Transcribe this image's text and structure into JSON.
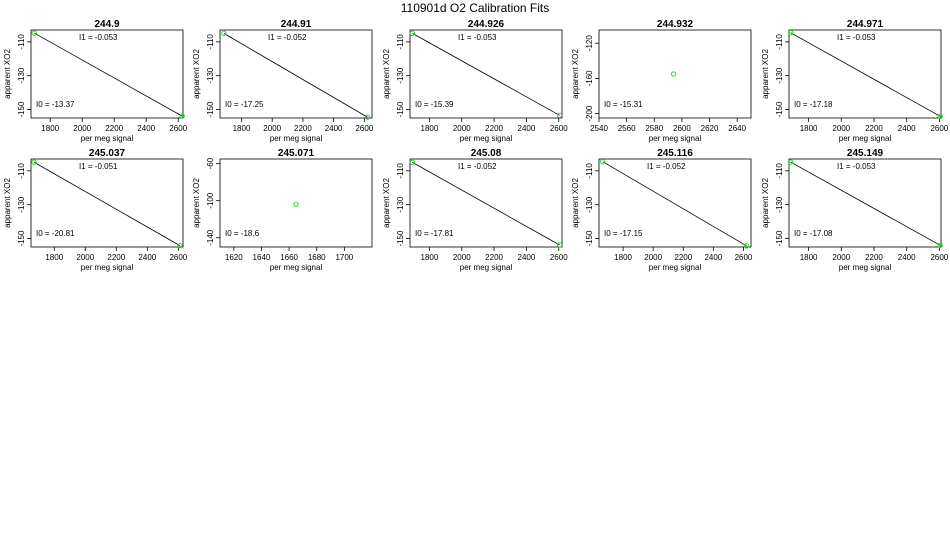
{
  "page_title": "110901d   O2 Calibration Fits",
  "colors": {
    "frame": "#000000",
    "fit_line": "#000000",
    "points": "#22dd22"
  },
  "chart_data": [
    {
      "type": "scatter",
      "title": "244.9",
      "xlabel": "per meg signal",
      "ylabel": "apparent XO2",
      "xlim": [
        1680,
        2630
      ],
      "ylim": [
        -155,
        -103
      ],
      "xticks": [
        "1800",
        "2000",
        "2200",
        "2400",
        "2600"
      ],
      "yticks": [
        "-110",
        "-130",
        "-150"
      ],
      "x_tick_values": [
        1800,
        2000,
        2200,
        2400,
        2600
      ],
      "y_tick_values": [
        -110,
        -130,
        -150
      ],
      "points": [
        [
          1700,
          -104.8
        ],
        [
          2625,
          -153.9
        ]
      ],
      "fit": [
        [
          1700,
          -104.8
        ],
        [
          2625,
          -153.9
        ]
      ],
      "i1_label": "I1 =  -0.053",
      "i0_label": "I0 =  -13.37"
    },
    {
      "type": "scatter",
      "title": "244.91",
      "xlabel": "per meg signal",
      "ylabel": "apparent XO2",
      "xlim": [
        1660,
        2650
      ],
      "ylim": [
        -155,
        -103
      ],
      "xticks": [
        "1800",
        "2000",
        "2200",
        "2400",
        "2600"
      ],
      "yticks": [
        "-110",
        "-130",
        "-150"
      ],
      "x_tick_values": [
        1800,
        2000,
        2200,
        2400,
        2600
      ],
      "y_tick_values": [
        -110,
        -130,
        -150
      ],
      "points": [
        [
          1685,
          -105.0
        ],
        [
          2620,
          -154.5
        ]
      ],
      "fit": [
        [
          1685,
          -105.0
        ],
        [
          2620,
          -154.5
        ]
      ],
      "i1_label": "I1 =  -0.052",
      "i0_label": "I0 =  -17.25"
    },
    {
      "type": "scatter",
      "title": "244.926",
      "xlabel": "per meg signal",
      "ylabel": "apparent XO2",
      "xlim": [
        1680,
        2620
      ],
      "ylim": [
        -155,
        -103
      ],
      "xticks": [
        "1800",
        "2000",
        "2200",
        "2400",
        "2600"
      ],
      "yticks": [
        "-110",
        "-130",
        "-150"
      ],
      "x_tick_values": [
        1800,
        2000,
        2200,
        2400,
        2600
      ],
      "y_tick_values": [
        -110,
        -130,
        -150
      ],
      "points": [
        [
          1695,
          -105.0
        ],
        [
          2605,
          -153.4
        ]
      ],
      "fit": [
        [
          1695,
          -105.0
        ],
        [
          2605,
          -153.4
        ]
      ],
      "i1_label": "I1 =  -0.053",
      "i0_label": "I0 =  -15.39"
    },
    {
      "type": "scatter",
      "title": "244.932",
      "xlabel": "per meg signal",
      "ylabel": "apparent XO2",
      "xlim": [
        2540,
        2650
      ],
      "ylim": [
        -205,
        -105
      ],
      "xticks": [
        "2540",
        "2560",
        "2580",
        "2600",
        "2620",
        "2640"
      ],
      "yticks": [
        "-120",
        "-160",
        "-200"
      ],
      "x_tick_values": [
        2540,
        2560,
        2580,
        2600,
        2620,
        2640
      ],
      "y_tick_values": [
        -120,
        -160,
        -200
      ],
      "points": [
        [
          2594,
          -155.0
        ]
      ],
      "fit": [],
      "i1_label": "",
      "i0_label": "I0 =  -15.31"
    },
    {
      "type": "scatter",
      "title": "244.971",
      "xlabel": "per meg signal",
      "ylabel": "apparent XO2",
      "xlim": [
        1680,
        2610
      ],
      "ylim": [
        -155,
        -103
      ],
      "xticks": [
        "1800",
        "2000",
        "2200",
        "2400",
        "2600"
      ],
      "yticks": [
        "-110",
        "-130",
        "-150"
      ],
      "x_tick_values": [
        1800,
        2000,
        2200,
        2400,
        2600
      ],
      "y_tick_values": [
        -110,
        -130,
        -150
      ],
      "points": [
        [
          1690,
          -104.6
        ],
        [
          2605,
          -154.0
        ]
      ],
      "fit": [
        [
          1690,
          -104.6
        ],
        [
          2605,
          -154.0
        ]
      ],
      "i1_label": "I1 =  -0.053",
      "i0_label": "I0 =  -17.18"
    },
    {
      "type": "scatter",
      "title": "245.037",
      "xlabel": "per meg signal",
      "ylabel": "apparent XO2",
      "xlim": [
        1650,
        2630
      ],
      "ylim": [
        -155,
        -103
      ],
      "xticks": [
        "1800",
        "2000",
        "2200",
        "2400",
        "2600"
      ],
      "yticks": [
        "-110",
        "-130",
        "-150"
      ],
      "x_tick_values": [
        1800,
        2000,
        2200,
        2400,
        2600
      ],
      "y_tick_values": [
        -110,
        -130,
        -150
      ],
      "points": [
        [
          1670,
          -104.9
        ],
        [
          2610,
          -154.2
        ]
      ],
      "fit": [
        [
          1670,
          -104.9
        ],
        [
          2610,
          -154.2
        ]
      ],
      "i1_label": "I1 =  -0.051",
      "i0_label": "I0 =  -20.81"
    },
    {
      "type": "scatter",
      "title": "245.071",
      "xlabel": "per meg signal",
      "ylabel": "apparent XO2",
      "xlim": [
        1610,
        1720
      ],
      "ylim": [
        -150,
        -55
      ],
      "xticks": [
        "1620",
        "1640",
        "1660",
        "1680",
        "1700"
      ],
      "yticks": [
        "-60",
        "-100",
        "-140"
      ],
      "x_tick_values": [
        1620,
        1640,
        1660,
        1680,
        1700
      ],
      "y_tick_values": [
        -60,
        -100,
        -140
      ],
      "points": [
        [
          1665,
          -104.0
        ]
      ],
      "fit": [],
      "i1_label": "",
      "i0_label": "I0 =  -18.6"
    },
    {
      "type": "scatter",
      "title": "245.08",
      "xlabel": "per meg signal",
      "ylabel": "apparent XO2",
      "xlim": [
        1680,
        2620
      ],
      "ylim": [
        -155,
        -103
      ],
      "xticks": [
        "1800",
        "2000",
        "2200",
        "2400",
        "2600"
      ],
      "yticks": [
        "-110",
        "-130",
        "-150"
      ],
      "x_tick_values": [
        1800,
        2000,
        2200,
        2400,
        2600
      ],
      "y_tick_values": [
        -110,
        -130,
        -150
      ],
      "points": [
        [
          1695,
          -105.0
        ],
        [
          2605,
          -153.8
        ]
      ],
      "fit": [
        [
          1695,
          -105.0
        ],
        [
          2605,
          -153.8
        ]
      ],
      "i1_label": "I1 =  -0.052",
      "i0_label": "I0 =  -17.81"
    },
    {
      "type": "scatter",
      "title": "245.116",
      "xlabel": "per meg signal",
      "ylabel": "apparent XO2",
      "xlim": [
        1640,
        2650
      ],
      "ylim": [
        -155,
        -103
      ],
      "xticks": [
        "1800",
        "2000",
        "2200",
        "2400",
        "2600"
      ],
      "yticks": [
        "-110",
        "-130",
        "-150"
      ],
      "x_tick_values": [
        1800,
        2000,
        2200,
        2400,
        2600
      ],
      "y_tick_values": [
        -110,
        -130,
        -150
      ],
      "points": [
        [
          1665,
          -104.6
        ],
        [
          2620,
          -154.3
        ]
      ],
      "fit": [
        [
          1665,
          -104.6
        ],
        [
          2620,
          -154.3
        ]
      ],
      "i1_label": "I1 =  -0.052",
      "i0_label": "I0 =  -17.15"
    },
    {
      "type": "scatter",
      "title": "245.149",
      "xlabel": "per meg signal",
      "ylabel": "apparent XO2",
      "xlim": [
        1680,
        2610
      ],
      "ylim": [
        -155,
        -103
      ],
      "xticks": [
        "1800",
        "2000",
        "2200",
        "2400",
        "2600"
      ],
      "yticks": [
        "-110",
        "-130",
        "-150"
      ],
      "x_tick_values": [
        1800,
        2000,
        2200,
        2400,
        2600
      ],
      "y_tick_values": [
        -110,
        -130,
        -150
      ],
      "points": [
        [
          1690,
          -104.8
        ],
        [
          2605,
          -154.0
        ]
      ],
      "fit": [
        [
          1690,
          -104.8
        ],
        [
          2605,
          -154.0
        ]
      ],
      "i1_label": "I1 =  -0.053",
      "i0_label": "I0 =  -17.08"
    }
  ]
}
